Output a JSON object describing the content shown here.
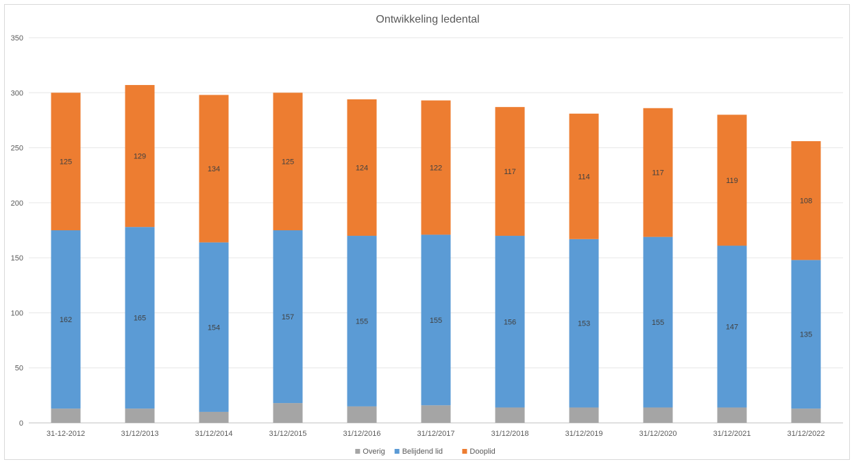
{
  "chart_data": {
    "type": "bar",
    "stacked": true,
    "title": "Ontwikkeling ledental",
    "xlabel": "",
    "ylabel": "",
    "categories": [
      "31-12-2012",
      "31/12/2013",
      "31/12/2014",
      "31/12/2015",
      "31/12/2016",
      "31/12/2017",
      "31/12/2018",
      "31/12/2019",
      "31/12/2020",
      "31/12/2021",
      "31/12/2022"
    ],
    "series": [
      {
        "name": "Overig",
        "color": "#a5a5a5",
        "values": [
          13,
          13,
          10,
          18,
          15,
          16,
          14,
          14,
          14,
          14,
          13
        ],
        "show_labels": false
      },
      {
        "name": "Belijdend lid",
        "color": "#5b9bd5",
        "values": [
          162,
          165,
          154,
          157,
          155,
          155,
          156,
          153,
          155,
          147,
          135
        ],
        "show_labels": true
      },
      {
        "name": "Dooplid",
        "color": "#ed7d31",
        "values": [
          125,
          129,
          134,
          125,
          124,
          122,
          117,
          114,
          117,
          119,
          108
        ],
        "show_labels": true
      }
    ],
    "ylim": [
      0,
      350
    ],
    "yticks": [
      0,
      50,
      100,
      150,
      200,
      250,
      300,
      350
    ],
    "grid": true,
    "legend": "bottom"
  }
}
